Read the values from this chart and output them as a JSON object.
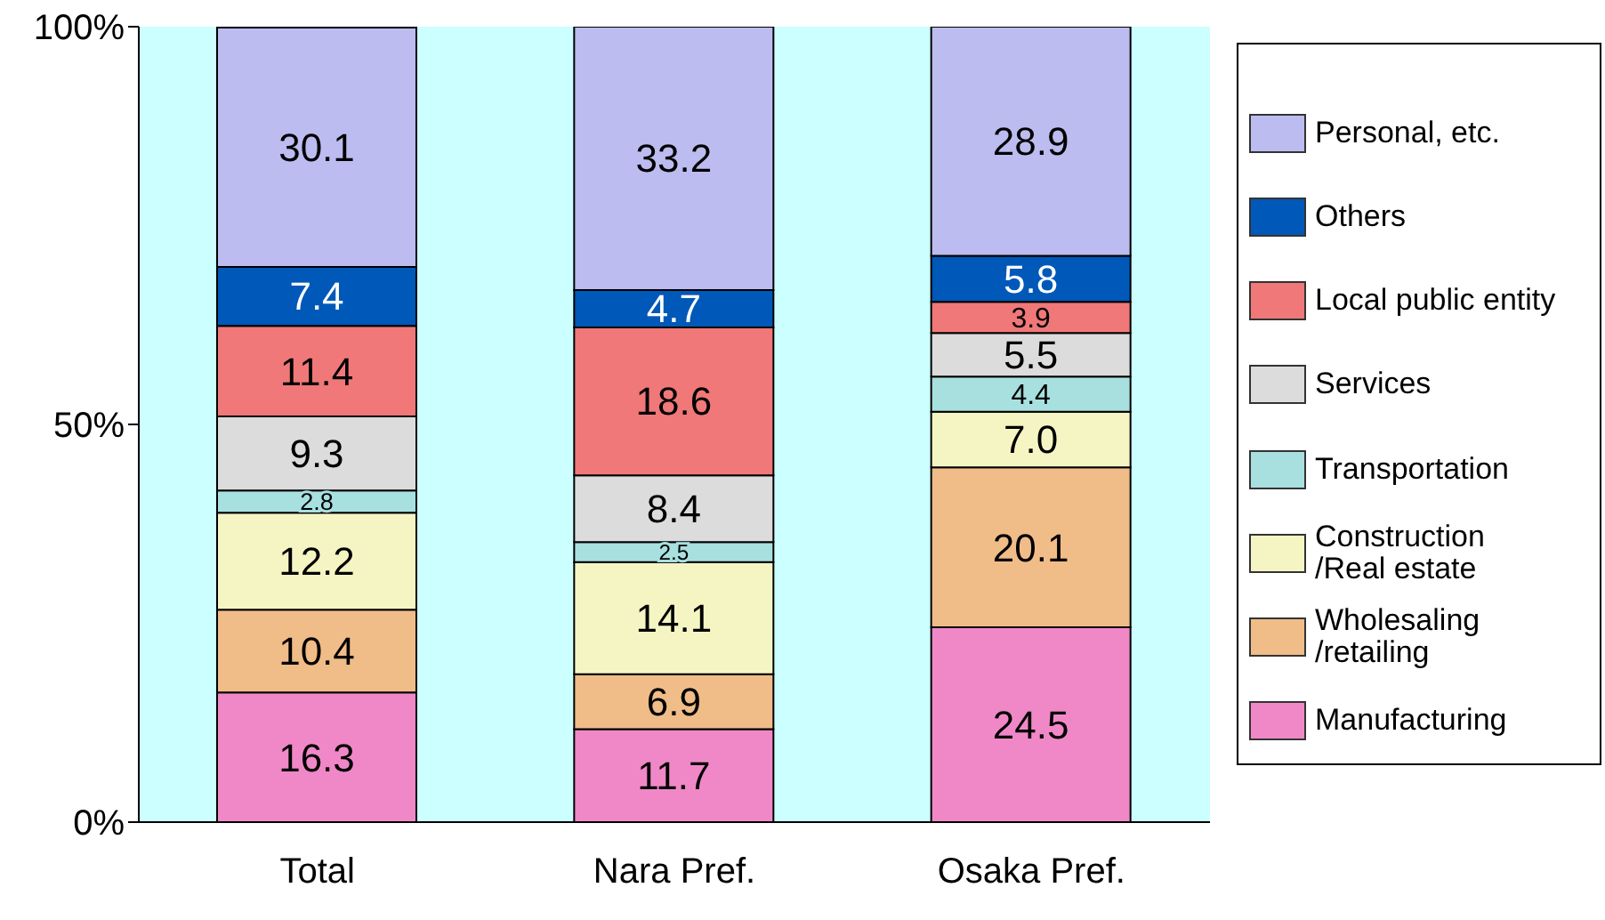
{
  "chart_data": {
    "type": "bar",
    "stacked": true,
    "categories": [
      "Total",
      "Nara Pref.",
      "Osaka Pref."
    ],
    "ylim": [
      0,
      100
    ],
    "yticks": [
      {
        "value": 0,
        "label": "0%"
      },
      {
        "value": 50,
        "label": "50%"
      },
      {
        "value": 100,
        "label": "100%"
      }
    ],
    "grid": false,
    "legend": "right",
    "series": [
      {
        "name": "Manufacturing",
        "color": "#f088c8",
        "values": [
          16.3,
          11.7,
          24.5
        ],
        "value_labels": [
          "16.3",
          "11.7",
          "24.5"
        ]
      },
      {
        "name": "Wholesaling\n/retailing",
        "color": "#f0bc88",
        "values": [
          10.4,
          6.9,
          20.1
        ],
        "value_labels": [
          "10.4",
          "6.9",
          "20.1"
        ]
      },
      {
        "name": "Construction\n/Real estate",
        "color": "#f5f5c4",
        "values": [
          12.2,
          14.1,
          7.0
        ],
        "value_labels": [
          "12.2",
          "14.1",
          "7.0"
        ]
      },
      {
        "name": "Transportation",
        "color": "#a8e0e0",
        "values": [
          2.8,
          2.5,
          4.4
        ],
        "value_labels": [
          "2.8",
          "2.5",
          "4.4"
        ]
      },
      {
        "name": "Services",
        "color": "#dcdcdc",
        "values": [
          9.3,
          8.4,
          5.5
        ],
        "value_labels": [
          "9.3",
          "8.4",
          "5.5"
        ]
      },
      {
        "name": "Local public entity",
        "color": "#f07878",
        "values": [
          11.4,
          18.6,
          3.9
        ],
        "value_labels": [
          "11.4",
          "18.6",
          "3.9"
        ]
      },
      {
        "name": "Others",
        "color": "#0058b8",
        "values": [
          7.4,
          4.7,
          5.8
        ],
        "value_labels": [
          "7.4",
          "4.7",
          "5.8"
        ]
      },
      {
        "name": "Personal, etc.",
        "color": "#bcbcf0",
        "values": [
          30.1,
          33.2,
          28.9
        ],
        "value_labels": [
          "30.1",
          "33.2",
          "28.9"
        ]
      }
    ]
  }
}
